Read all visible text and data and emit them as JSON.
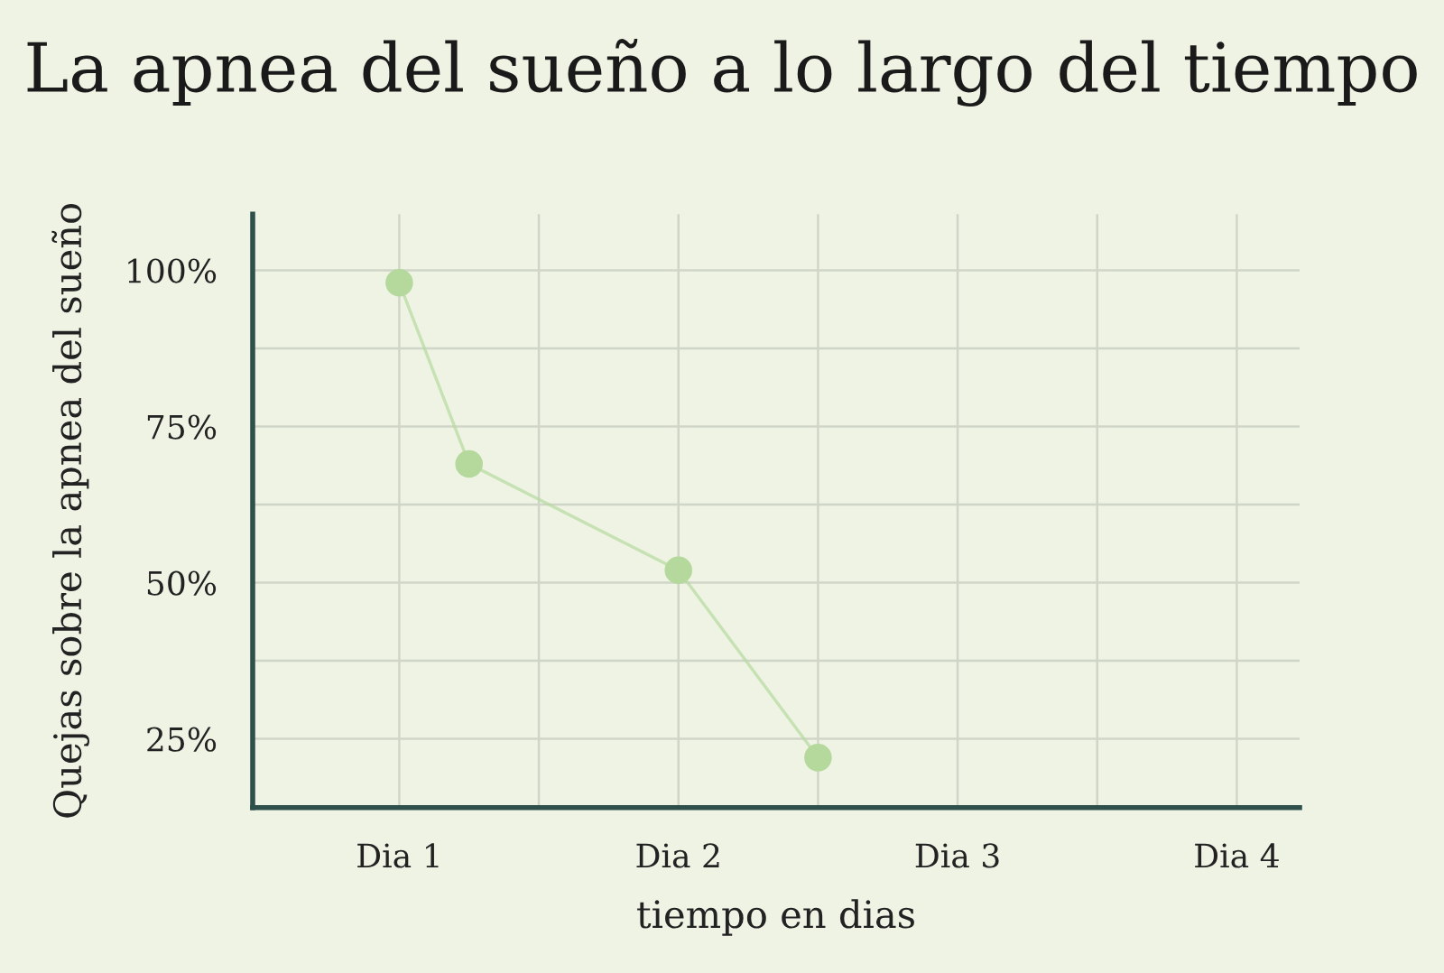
{
  "chart_data": {
    "type": "line",
    "title": "La apnea del sueño a lo largo del tiempo",
    "xlabel": "tiempo en dias",
    "ylabel": "Quejas sobre la apnea del sueño",
    "categories": [
      "Dia 1",
      null,
      null,
      null,
      "Dia 2",
      null,
      null,
      null,
      "Dia 3",
      null,
      null,
      null,
      "Dia 4"
    ],
    "series": [
      {
        "color": "#b5d99c",
        "values": [
          98,
          69,
          null,
          null,
          52,
          null,
          22,
          null,
          null,
          null,
          null,
          null,
          null
        ]
      }
    ],
    "marker": "circle",
    "line_style": "solid",
    "grid": true,
    "ylim": [
      14,
      109
    ],
    "yticks": [
      {
        "value": 25,
        "label": "25%"
      },
      {
        "value": 37.5,
        "label": null
      },
      {
        "value": 50,
        "label": "50%"
      },
      {
        "value": 62.5,
        "label": null
      },
      {
        "value": 75,
        "label": "75%"
      },
      {
        "value": 87.5,
        "label": null
      },
      {
        "value": 100,
        "label": "100%"
      }
    ]
  }
}
